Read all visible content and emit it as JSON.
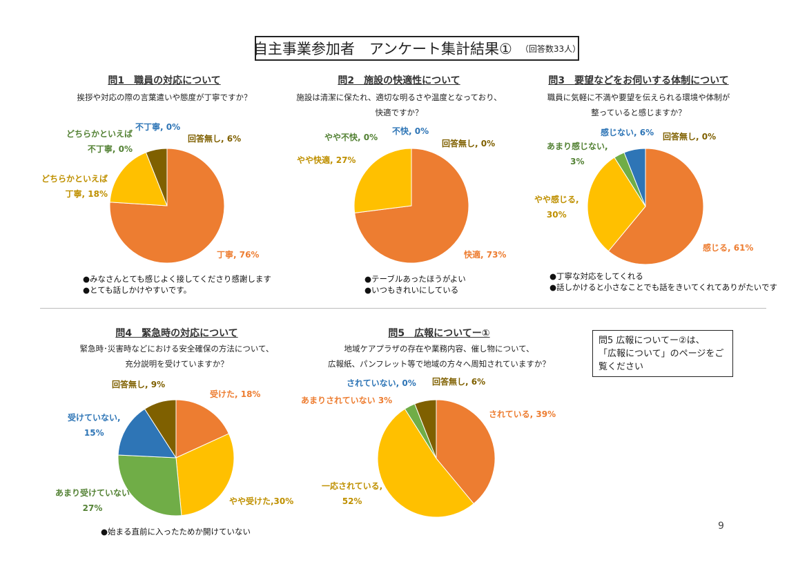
{
  "title": {
    "main": "自主事業参加者　アンケート集計結果①",
    "note": "（回答数33人）"
  },
  "colors": {
    "orange": "#ED7D31",
    "yellow": "#FFC000",
    "olive": "#7F6000",
    "blue": "#2E75B6",
    "green": "#70AD47",
    "gray": "#A5A5A5",
    "olive_text": "#7F6000",
    "green_text": "#548235"
  },
  "panels": {
    "q1": {
      "title": "問1　職員の対応について",
      "subtitle": [
        "挨拶や対応の際の言葉遣いや態度が丁寧ですか？"
      ],
      "labels": {
        "s0": "丁寧, 76%",
        "s1a": "どちらかといえば",
        "s1b": "丁寧, 18%",
        "s2a": "どちらかといえば",
        "s2b": "不丁寧, 0%",
        "s3": "不丁寧, 0%",
        "s4": "回答無し, 6%"
      },
      "comments": [
        "●みなさんとても感じよく接してくださり感謝します",
        "●とても話しかけやすいです。"
      ]
    },
    "q2": {
      "title": "問2　施設の快適性について",
      "subtitle": [
        "施設は清潔に保たれ、適切な明るさや温度となっており、",
        "快適ですか？"
      ],
      "labels": {
        "s0": "快適, 73%",
        "s1": "やや快適, 27%",
        "s2": "やや不快, 0%",
        "s3": "不快, 0%",
        "s4": "回答無し, 0%"
      },
      "comments": [
        "●テーブルあったほうがよい",
        "●いつもきれいにしている"
      ]
    },
    "q3": {
      "title": "問3　要望などをお伺いする体制について",
      "subtitle": [
        "職員に気軽に不満や要望を伝えられる環境や体制が",
        "整っていると感じますか？"
      ],
      "labels": {
        "s0": "感じる, 61%",
        "s1a": "やや感じる,",
        "s1b": "30%",
        "s2a": "あまり感じない,",
        "s2b": "3%",
        "s3": "感じない, 6%",
        "s4": "回答無し, 0%"
      },
      "comments": [
        "●丁寧な対応をしてくれる",
        "●話しかけると小さなことでも話をきいてくれてありがたいです"
      ]
    },
    "q4": {
      "title": "問4　緊急時の対応について",
      "subtitle": [
        "緊急時･災害時などにおける安全確保の方法について、",
        "充分説明を受けていますか？"
      ],
      "labels": {
        "s0": "受けた, 18%",
        "s1": "やや受けた,30%",
        "s2a": "あまり受けていない",
        "s2b": "27%",
        "s3a": "受けていない,",
        "s3b": "15%",
        "s4": "回答無し, 9%"
      },
      "comments": [
        "●始まる直前に入ったためか開けていない"
      ]
    },
    "q5": {
      "title": "問5　広報についてー①",
      "subtitle": [
        "地域ケアプラザの存在や業務内容、催し物について、",
        "広報紙、パンフレット等で地域の方々へ周知されていますか？"
      ],
      "labels": {
        "s0": "されている, 39%",
        "s1a": "一応されている,",
        "s1b": "52%",
        "s2": "あまりされていない  3%",
        "s3": "されていない, 0%",
        "s4": "回答無し, 6%"
      },
      "comments": []
    }
  },
  "note_box": [
    "問5  広報についてー②は、",
    "「広報について」のページをご",
    "覧ください"
  ],
  "page_number": "9",
  "chart_data": [
    {
      "type": "pie",
      "title": "問1　職員の対応について",
      "labels": [
        "丁寧",
        "どちらかといえば丁寧",
        "どちらかといえば不丁寧",
        "不丁寧",
        "回答無し"
      ],
      "values": [
        76,
        18,
        0,
        0,
        6
      ],
      "colors": [
        "#ED7D31",
        "#FFC000",
        "#A5A5A5",
        "#2E75B6",
        "#7F6000"
      ]
    },
    {
      "type": "pie",
      "title": "問2　施設の快適性について",
      "labels": [
        "快適",
        "やや快適",
        "やや不快",
        "不快",
        "回答無し"
      ],
      "values": [
        73,
        27,
        0,
        0,
        0
      ],
      "colors": [
        "#ED7D31",
        "#FFC000",
        "#70AD47",
        "#2E75B6",
        "#7F6000"
      ]
    },
    {
      "type": "pie",
      "title": "問3　要望などをお伺いする体制について",
      "labels": [
        "感じる",
        "やや感じる",
        "あまり感じない",
        "感じない",
        "回答無し"
      ],
      "values": [
        61,
        30,
        3,
        6,
        0
      ],
      "colors": [
        "#ED7D31",
        "#FFC000",
        "#70AD47",
        "#2E75B6",
        "#7F6000"
      ]
    },
    {
      "type": "pie",
      "title": "問4　緊急時の対応について",
      "labels": [
        "受けた",
        "やや受けた",
        "あまり受けていない",
        "受けていない",
        "回答無し"
      ],
      "values": [
        18,
        30,
        27,
        15,
        9
      ],
      "colors": [
        "#ED7D31",
        "#FFC000",
        "#70AD47",
        "#2E75B6",
        "#7F6000"
      ]
    },
    {
      "type": "pie",
      "title": "問5　広報についてー①",
      "labels": [
        "されている",
        "一応されている",
        "あまりされていない",
        "されていない",
        "回答無し"
      ],
      "values": [
        39,
        52,
        3,
        0,
        6
      ],
      "colors": [
        "#ED7D31",
        "#FFC000",
        "#70AD47",
        "#2E75B6",
        "#7F6000"
      ]
    }
  ]
}
